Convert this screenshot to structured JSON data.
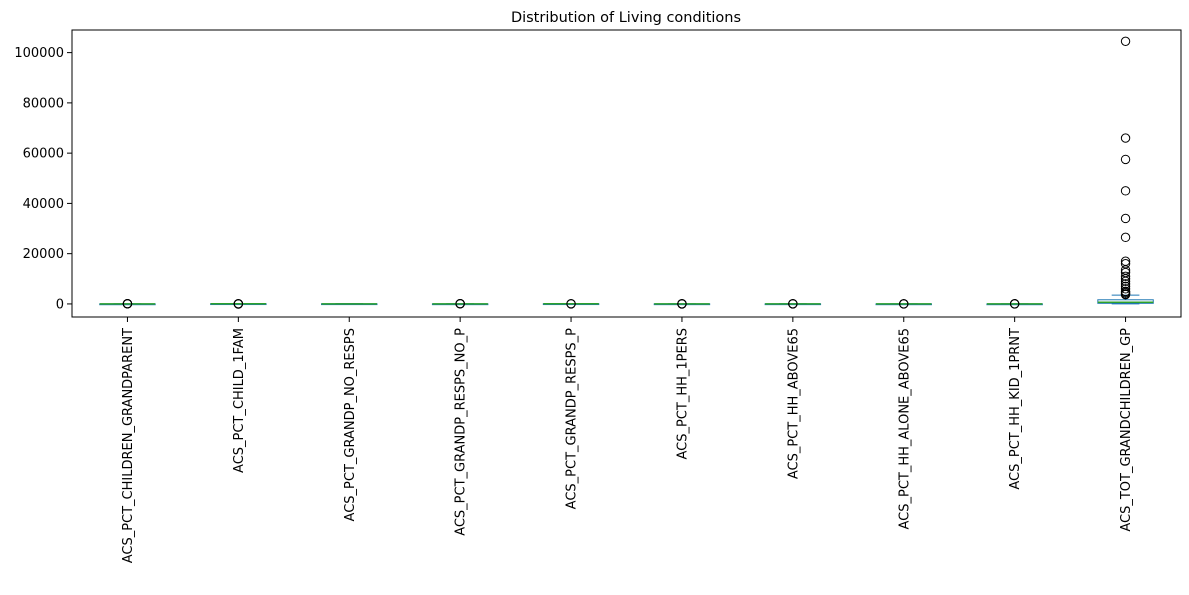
{
  "chart_data": {
    "type": "box",
    "title": "Distribution of Living conditions",
    "xlabel": "",
    "ylabel": "",
    "ylim": [
      -5200,
      109000
    ],
    "yticks": [
      0,
      20000,
      40000,
      60000,
      80000,
      100000
    ],
    "ytick_labels": [
      "0",
      "20000",
      "40000",
      "60000",
      "80000",
      "100000"
    ],
    "grid": false,
    "colors": {
      "box": "#1f77b4",
      "median": "#2ca02c",
      "whisker": "#1f77b4",
      "flier": "#000000"
    },
    "categories": [
      "ACS_PCT_CHILDREN_GRANDPARENT",
      "ACS_PCT_CHILD_1FAM",
      "ACS_PCT_GRANDP_NO_RESPS",
      "ACS_PCT_GRANDP_RESPS_NO_P",
      "ACS_PCT_GRANDP_RESPS_P",
      "ACS_PCT_HH_1PERS",
      "ACS_PCT_HH_ABOVE65",
      "ACS_PCT_HH_ALONE_ABOVE65",
      "ACS_PCT_HH_KID_1PRNT",
      "ACS_TOT_GRANDCHILDREN_GP"
    ],
    "series": [
      {
        "q1": 2,
        "median": 5,
        "q3": 9,
        "whisker_low": 0,
        "whisker_high": 20,
        "fliers": [
          30,
          45,
          60,
          80,
          100
        ]
      },
      {
        "q1": 60,
        "median": 67,
        "q3": 75,
        "whisker_low": 40,
        "whisker_high": 95,
        "fliers": [
          0,
          10,
          20,
          100
        ]
      },
      {
        "q1": 20,
        "median": 40,
        "q3": 55,
        "whisker_low": 0,
        "whisker_high": 100,
        "fliers": []
      },
      {
        "q1": 10,
        "median": 20,
        "q3": 30,
        "whisker_low": 0,
        "whisker_high": 55,
        "fliers": [
          60,
          75,
          90,
          100
        ]
      },
      {
        "q1": 40,
        "median": 55,
        "q3": 70,
        "whisker_low": 0,
        "whisker_high": 100,
        "fliers": [
          0,
          100
        ]
      },
      {
        "q1": 25,
        "median": 29,
        "q3": 33,
        "whisker_low": 12,
        "whisker_high": 45,
        "fliers": [
          0,
          5,
          55,
          70
        ]
      },
      {
        "q1": 28,
        "median": 33,
        "q3": 38,
        "whisker_low": 15,
        "whisker_high": 52,
        "fliers": [
          5,
          60,
          75
        ]
      },
      {
        "q1": 10,
        "median": 13,
        "q3": 15,
        "whisker_low": 4,
        "whisker_high": 23,
        "fliers": [
          0,
          30,
          40
        ]
      },
      {
        "q1": 5,
        "median": 8,
        "q3": 11,
        "whisker_low": 0,
        "whisker_high": 20,
        "fliers": [
          25,
          35,
          50
        ]
      },
      {
        "q1": 250,
        "median": 650,
        "q3": 1650,
        "whisker_low": 0,
        "whisker_high": 3500,
        "fliers": [
          104500,
          66000,
          57500,
          45000,
          34000,
          26500,
          17000,
          16000,
          13500,
          12500,
          11000,
          10000,
          9000,
          8000,
          7000,
          6000,
          5000,
          4500,
          4000,
          3700
        ]
      }
    ]
  }
}
